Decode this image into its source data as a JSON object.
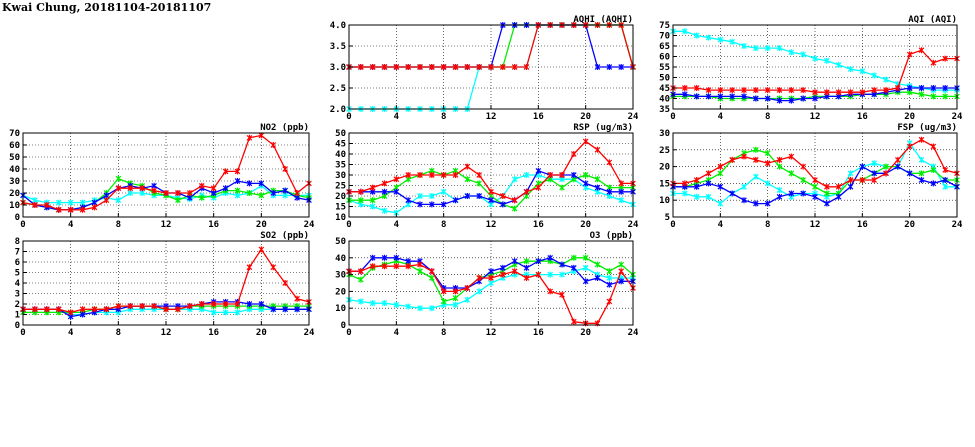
{
  "page": {
    "title": "Kwai Chung, 20181104-20181107"
  },
  "colors": {
    "series": [
      "#ff0000",
      "#00ee00",
      "#0000ff",
      "#00ffff"
    ],
    "grid": "#000000",
    "frame": "#000000"
  },
  "chart_data": [
    {
      "id": "aqhi",
      "type": "line",
      "title": "AQHI (AQHI)",
      "xlim": [
        0,
        24
      ],
      "xticks": [
        0,
        4,
        8,
        12,
        16,
        20,
        24
      ],
      "ylim": [
        2.0,
        4.0
      ],
      "yticks": [
        "2.0",
        "2.5",
        "3.0",
        "3.5",
        "4.0"
      ],
      "grid": true,
      "x": [
        0,
        1,
        2,
        3,
        4,
        5,
        6,
        7,
        8,
        9,
        10,
        11,
        12,
        13,
        14,
        15,
        16,
        17,
        18,
        19,
        20,
        21,
        22,
        23,
        24
      ],
      "series": [
        {
          "color": "#00ffff",
          "values": [
            2,
            2,
            2,
            2,
            2,
            2,
            2,
            2,
            2,
            2,
            2,
            3,
            3,
            3,
            3,
            3,
            4,
            4,
            4,
            4,
            4,
            4,
            4,
            4,
            3
          ]
        },
        {
          "color": "#00ee00",
          "values": [
            3,
            3,
            3,
            3,
            3,
            3,
            3,
            3,
            3,
            3,
            3,
            3,
            3,
            3,
            4,
            4,
            4,
            4,
            4,
            4,
            4,
            4,
            4,
            4,
            3
          ]
        },
        {
          "color": "#0000ff",
          "values": [
            3,
            3,
            3,
            3,
            3,
            3,
            3,
            3,
            3,
            3,
            3,
            3,
            3,
            4,
            4,
            4,
            4,
            4,
            4,
            4,
            4,
            3,
            3,
            3,
            3
          ]
        },
        {
          "color": "#ff0000",
          "values": [
            3,
            3,
            3,
            3,
            3,
            3,
            3,
            3,
            3,
            3,
            3,
            3,
            3,
            3,
            3,
            3,
            4,
            4,
            4,
            4,
            4,
            4,
            4,
            4,
            3
          ]
        }
      ]
    },
    {
      "id": "aqi",
      "type": "line",
      "title": "AQI (AQI)",
      "xlim": [
        0,
        24
      ],
      "xticks": [
        0,
        4,
        8,
        12,
        16,
        20,
        24
      ],
      "ylim": [
        35,
        75
      ],
      "yticks": [
        "35",
        "40",
        "45",
        "50",
        "55",
        "60",
        "65",
        "70",
        "75"
      ],
      "grid": true,
      "x": [
        0,
        1,
        2,
        3,
        4,
        5,
        6,
        7,
        8,
        9,
        10,
        11,
        12,
        13,
        14,
        15,
        16,
        17,
        18,
        19,
        20,
        21,
        22,
        23,
        24
      ],
      "series": [
        {
          "color": "#00ffff",
          "values": [
            72,
            72,
            70,
            69,
            68,
            67,
            65,
            64,
            64,
            64,
            62,
            61,
            59,
            58,
            56,
            54,
            53,
            51,
            49,
            47,
            46,
            45,
            44,
            44,
            44
          ]
        },
        {
          "color": "#00ee00",
          "values": [
            41,
            41,
            41,
            41,
            40,
            40,
            40,
            40,
            40,
            40,
            40,
            40,
            41,
            41,
            41,
            41,
            42,
            42,
            42,
            43,
            43,
            42,
            41,
            41,
            41
          ]
        },
        {
          "color": "#0000ff",
          "values": [
            42,
            42,
            41,
            41,
            41,
            41,
            41,
            40,
            40,
            39,
            39,
            40,
            40,
            41,
            41,
            42,
            42,
            42,
            43,
            44,
            45,
            45,
            45,
            45,
            45
          ]
        },
        {
          "color": "#ff0000",
          "values": [
            45,
            45,
            45,
            44,
            44,
            44,
            44,
            44,
            44,
            44,
            44,
            44,
            43,
            43,
            43,
            43,
            43,
            44,
            44,
            45,
            61,
            63,
            57,
            59,
            59
          ]
        }
      ]
    },
    {
      "id": "no2",
      "type": "line",
      "title": "NO2 (ppb)",
      "xlim": [
        0,
        24
      ],
      "xticks": [
        0,
        4,
        8,
        12,
        16,
        20,
        24
      ],
      "ylim": [
        0,
        70
      ],
      "yticks": [
        "0",
        "10",
        "20",
        "30",
        "40",
        "50",
        "60",
        "70"
      ],
      "grid": true,
      "x": [
        0,
        1,
        2,
        3,
        4,
        5,
        6,
        7,
        8,
        9,
        10,
        11,
        12,
        13,
        14,
        15,
        16,
        17,
        18,
        19,
        20,
        21,
        22,
        23,
        24
      ],
      "series": [
        {
          "color": "#00ffff",
          "values": [
            18,
            14,
            12,
            12,
            12,
            12,
            14,
            16,
            14,
            20,
            20,
            18,
            18,
            16,
            15,
            18,
            16,
            20,
            18,
            20,
            26,
            18,
            18,
            18,
            18
          ]
        },
        {
          "color": "#00ee00",
          "values": [
            12,
            10,
            8,
            6,
            6,
            8,
            12,
            20,
            32,
            28,
            26,
            20,
            18,
            14,
            18,
            16,
            18,
            22,
            22,
            20,
            18,
            22,
            22,
            18,
            16
          ]
        },
        {
          "color": "#0000ff",
          "values": [
            18,
            10,
            8,
            6,
            6,
            8,
            12,
            18,
            24,
            26,
            24,
            26,
            20,
            20,
            16,
            24,
            20,
            24,
            30,
            28,
            28,
            20,
            22,
            16,
            14
          ]
        },
        {
          "color": "#ff0000",
          "values": [
            12,
            10,
            10,
            6,
            6,
            6,
            8,
            14,
            24,
            24,
            24,
            22,
            20,
            20,
            20,
            26,
            24,
            38,
            38,
            66,
            68,
            60,
            40,
            20,
            28
          ]
        }
      ]
    },
    {
      "id": "rsp",
      "type": "line",
      "title": "RSP (ug/m3)",
      "xlim": [
        0,
        24
      ],
      "xticks": [
        0,
        4,
        8,
        12,
        16,
        20,
        24
      ],
      "ylim": [
        10,
        50
      ],
      "yticks": [
        "10",
        "15",
        "20",
        "25",
        "30",
        "35",
        "40",
        "45",
        "50"
      ],
      "grid": true,
      "x": [
        0,
        1,
        2,
        3,
        4,
        5,
        6,
        7,
        8,
        9,
        10,
        11,
        12,
        13,
        14,
        15,
        16,
        17,
        18,
        19,
        20,
        21,
        22,
        23,
        24
      ],
      "series": [
        {
          "color": "#00ffff",
          "values": [
            18,
            16,
            15,
            13,
            12,
            16,
            20,
            20,
            22,
            18,
            20,
            20,
            16,
            20,
            28,
            30,
            30,
            28,
            28,
            28,
            24,
            22,
            20,
            18,
            16
          ]
        },
        {
          "color": "#00ee00",
          "values": [
            18,
            18,
            18,
            20,
            24,
            28,
            30,
            32,
            30,
            32,
            28,
            26,
            20,
            16,
            14,
            20,
            26,
            28,
            24,
            28,
            30,
            28,
            24,
            24,
            24
          ]
        },
        {
          "color": "#0000ff",
          "values": [
            22,
            22,
            22,
            22,
            22,
            18,
            16,
            16,
            16,
            18,
            20,
            20,
            18,
            16,
            18,
            22,
            32,
            30,
            30,
            30,
            26,
            24,
            22,
            22,
            22
          ]
        },
        {
          "color": "#ff0000",
          "values": [
            22,
            22,
            24,
            26,
            28,
            30,
            30,
            30,
            30,
            30,
            34,
            30,
            22,
            20,
            18,
            22,
            24,
            30,
            30,
            40,
            46,
            42,
            36,
            26,
            26
          ]
        }
      ]
    },
    {
      "id": "fsp",
      "type": "line",
      "title": "FSP (ug/m3)",
      "xlim": [
        0,
        24
      ],
      "xticks": [
        0,
        4,
        8,
        12,
        16,
        20,
        24
      ],
      "ylim": [
        5,
        30
      ],
      "yticks": [
        "5",
        "10",
        "15",
        "20",
        "25",
        "30"
      ],
      "grid": true,
      "x": [
        0,
        1,
        2,
        3,
        4,
        5,
        6,
        7,
        8,
        9,
        10,
        11,
        12,
        13,
        14,
        15,
        16,
        17,
        18,
        19,
        20,
        21,
        22,
        23,
        24
      ],
      "series": [
        {
          "color": "#00ffff",
          "values": [
            12,
            12,
            11,
            11,
            9,
            12,
            14,
            17,
            15,
            13,
            11,
            12,
            12,
            11,
            12,
            18,
            20,
            21,
            20,
            20,
            27,
            22,
            20,
            14,
            14
          ]
        },
        {
          "color": "#00ee00",
          "values": [
            14,
            14,
            15,
            16,
            18,
            22,
            24,
            25,
            24,
            20,
            18,
            16,
            14,
            12,
            12,
            16,
            16,
            18,
            20,
            20,
            18,
            18,
            19,
            16,
            16
          ]
        },
        {
          "color": "#0000ff",
          "values": [
            14,
            14,
            14,
            15,
            14,
            12,
            10,
            9,
            9,
            11,
            12,
            12,
            11,
            9,
            11,
            14,
            20,
            18,
            18,
            20,
            18,
            16,
            15,
            16,
            14
          ]
        },
        {
          "color": "#ff0000",
          "values": [
            15,
            15,
            16,
            18,
            20,
            22,
            23,
            22,
            21,
            22,
            23,
            20,
            16,
            14,
            14,
            16,
            16,
            16,
            18,
            22,
            26,
            28,
            26,
            19,
            18
          ]
        }
      ]
    },
    {
      "id": "so2",
      "type": "line",
      "title": "SO2 (ppb)",
      "xlim": [
        0,
        24
      ],
      "xticks": [
        0,
        4,
        8,
        12,
        16,
        20,
        24
      ],
      "ylim": [
        0,
        8
      ],
      "yticks": [
        "0",
        "1",
        "2",
        "3",
        "4",
        "5",
        "6",
        "7",
        "8"
      ],
      "grid": true,
      "x": [
        0,
        1,
        2,
        3,
        4,
        5,
        6,
        7,
        8,
        9,
        10,
        11,
        12,
        13,
        14,
        15,
        16,
        17,
        18,
        19,
        20,
        21,
        22,
        23,
        24
      ],
      "series": [
        {
          "color": "#00ffff",
          "values": [
            1.5,
            1.5,
            1.5,
            1.5,
            1.0,
            1.0,
            1.2,
            1.2,
            1.2,
            1.5,
            1.5,
            1.5,
            1.5,
            1.5,
            1.5,
            1.5,
            1.2,
            1.2,
            1.2,
            1.5,
            1.5,
            1.5,
            1.5,
            1.5,
            1.5
          ]
        },
        {
          "color": "#00ee00",
          "values": [
            1.2,
            1.2,
            1.2,
            1.2,
            1.2,
            1.2,
            1.5,
            1.5,
            1.8,
            1.8,
            1.8,
            1.8,
            1.5,
            1.5,
            1.8,
            1.8,
            1.8,
            1.8,
            1.8,
            1.8,
            1.8,
            1.8,
            1.8,
            1.8,
            1.8
          ]
        },
        {
          "color": "#0000ff",
          "values": [
            1.5,
            1.5,
            1.5,
            1.5,
            0.8,
            1.0,
            1.2,
            1.5,
            1.5,
            1.8,
            1.8,
            1.8,
            1.8,
            1.8,
            1.8,
            2.0,
            2.2,
            2.2,
            2.2,
            2.0,
            2.0,
            1.5,
            1.5,
            1.5,
            1.5
          ]
        },
        {
          "color": "#ff0000",
          "values": [
            1.5,
            1.5,
            1.5,
            1.5,
            1.2,
            1.5,
            1.5,
            1.5,
            1.8,
            1.8,
            1.8,
            1.8,
            1.5,
            1.5,
            1.8,
            2.0,
            2.0,
            2.0,
            2.0,
            5.5,
            7.2,
            5.5,
            4.0,
            2.5,
            2.2
          ]
        }
      ]
    },
    {
      "id": "o3",
      "type": "line",
      "title": "O3 (ppb)",
      "xlim": [
        0,
        24
      ],
      "xticks": [
        0,
        4,
        8,
        12,
        16,
        20,
        24
      ],
      "ylim": [
        0,
        50
      ],
      "yticks": [
        "0",
        "10",
        "20",
        "30",
        "40",
        "50"
      ],
      "grid": true,
      "x": [
        0,
        1,
        2,
        3,
        4,
        5,
        6,
        7,
        8,
        9,
        10,
        11,
        12,
        13,
        14,
        15,
        16,
        17,
        18,
        19,
        20,
        21,
        22,
        23,
        24
      ],
      "series": [
        {
          "color": "#00ffff",
          "values": [
            15,
            14,
            13,
            13,
            12,
            11,
            10,
            10,
            12,
            12,
            15,
            20,
            25,
            28,
            30,
            30,
            30,
            30,
            30,
            32,
            34,
            30,
            28,
            28,
            28
          ]
        },
        {
          "color": "#00ee00",
          "values": [
            30,
            27,
            34,
            36,
            38,
            36,
            32,
            28,
            14,
            16,
            22,
            28,
            30,
            32,
            36,
            38,
            38,
            38,
            36,
            40,
            40,
            36,
            32,
            36,
            30
          ]
        },
        {
          "color": "#0000ff",
          "values": [
            32,
            32,
            40,
            40,
            40,
            38,
            38,
            32,
            22,
            22,
            22,
            26,
            32,
            34,
            38,
            34,
            38,
            40,
            36,
            34,
            26,
            28,
            24,
            26,
            26
          ]
        },
        {
          "color": "#ff0000",
          "values": [
            32,
            32,
            35,
            35,
            35,
            35,
            36,
            32,
            20,
            20,
            22,
            28,
            28,
            30,
            32,
            28,
            30,
            20,
            18,
            2,
            1,
            1,
            14,
            32,
            22
          ]
        }
      ]
    }
  ]
}
